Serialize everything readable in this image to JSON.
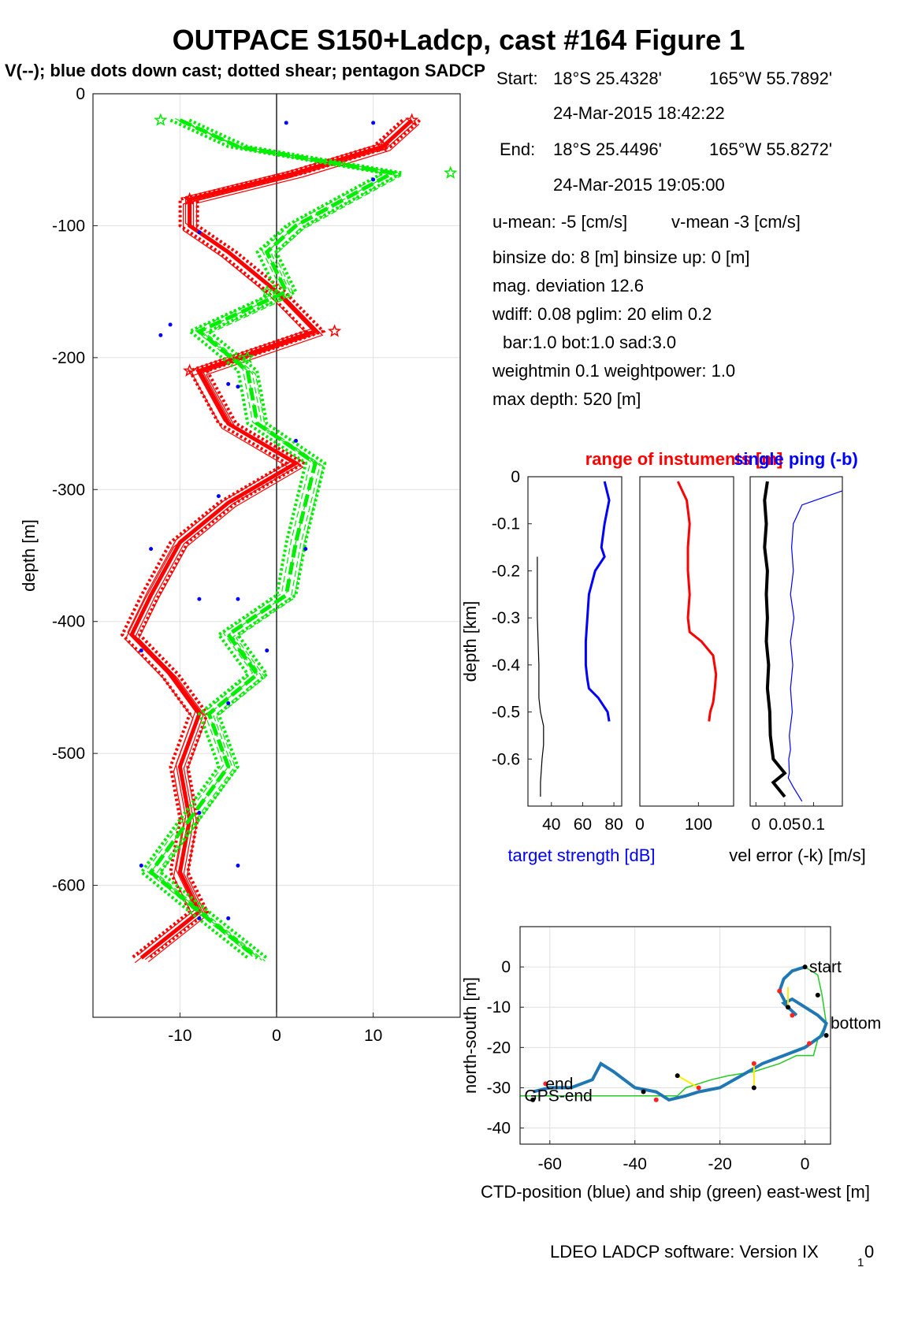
{
  "header": {
    "title": "OUTPACE S150+Ladcp, cast #164  Figure 1",
    "subtitle": "V(--); blue dots down cast; dotted shear; pentagon SADCP"
  },
  "info": {
    "start_label": "Start:",
    "start_lat": "18°S 25.4328'",
    "start_lon": "165°W 55.7892'",
    "start_time": "24-Mar-2015 18:42:22",
    "end_label": "End:",
    "end_lat": "18°S 25.4496'",
    "end_lon": "165°W 55.8272'",
    "end_time": "24-Mar-2015 19:05:00",
    "u_mean": "u-mean:  -5 [cm/s]",
    "v_mean": "v-mean  -3 [cm/s]",
    "binsize": "binsize do: 8 [m]  binsize up:  0 [m]",
    "mag_dev": "mag. deviation 12.6",
    "wdiff": "wdiff: 0.08  pglim: 20  elim 0.2",
    "bar": "bar:1.0 bot:1.0 sad:3.0",
    "weight": "weightmin 0.1  weightpower: 1.0",
    "max_depth": "max depth: 520 [m]"
  },
  "footer": {
    "software": "LDEO LADCP software: Version IX",
    "sub": "1",
    "tail": "0"
  },
  "chart_data": [
    {
      "name": "velocity-profile",
      "type": "line",
      "ylabel": "depth [m]",
      "xlim": [
        -19,
        19
      ],
      "ylim": [
        -700,
        0
      ],
      "xticks": [
        -10,
        0,
        10
      ],
      "yticks": [
        0,
        -100,
        -200,
        -300,
        -400,
        -500,
        -600
      ],
      "grid": true,
      "colors": {
        "u": "#ff0000",
        "v": "#00ee00",
        "dots": "#0000ff"
      },
      "depths": [
        -20,
        -40,
        -60,
        -80,
        -100,
        -120,
        -150,
        -180,
        -210,
        -250,
        -280,
        -310,
        -340,
        -380,
        -410,
        -440,
        -470,
        -510,
        -550,
        -590,
        -620,
        -655
      ],
      "u_mean": [
        14,
        11,
        2,
        -9,
        -9,
        -5,
        0,
        4,
        -8,
        -5,
        2,
        -5,
        -10,
        -13,
        -15,
        -11,
        -8,
        -10,
        -9,
        -10,
        -8,
        -14
      ],
      "v_mean": [
        -10,
        -4,
        12,
        7,
        2,
        -1,
        1,
        -8,
        -3,
        -2,
        4,
        3,
        2,
        1,
        -5,
        -2,
        -7,
        -5,
        -9,
        -13,
        -8,
        -2
      ],
      "down_dots_u": [
        [
          1,
          -22
        ],
        [
          -8,
          -105
        ],
        [
          -11,
          -175
        ],
        [
          -5,
          -220
        ],
        [
          -6,
          -305
        ],
        [
          -13,
          -345
        ],
        [
          -8,
          -383
        ],
        [
          -14,
          -422
        ],
        [
          -5,
          -462
        ],
        [
          -8,
          -545
        ],
        [
          -5,
          -625
        ]
      ],
      "down_dots_v": [
        [
          10,
          -22
        ],
        [
          10,
          -65
        ],
        [
          -12,
          -183
        ],
        [
          -4,
          -222
        ],
        [
          2,
          -263
        ],
        [
          3,
          -345
        ],
        [
          -4,
          -383
        ],
        [
          -1,
          -422
        ],
        [
          -4,
          -585
        ],
        [
          -14,
          -585
        ],
        [
          -8,
          -625
        ]
      ]
    },
    {
      "name": "target-strength",
      "type": "line",
      "title": "range of instuments [m]",
      "title_overlay": "single ping (-b)",
      "ylabel": "depth [km]",
      "xlabel": "target strength [dB]",
      "xlim": [
        25,
        85
      ],
      "ylim": [
        -0.7,
        0
      ],
      "xticks": [
        40,
        60,
        80
      ],
      "yticks": [
        0,
        -0.1,
        -0.2,
        -0.3,
        -0.4,
        -0.5,
        -0.6
      ],
      "series": [
        {
          "color": "#0000ff",
          "x": [
            74,
            77,
            74,
            72,
            74,
            68,
            64,
            63,
            62,
            62,
            63,
            64,
            70,
            76,
            77
          ],
          "y": [
            -0.01,
            -0.05,
            -0.1,
            -0.15,
            -0.17,
            -0.2,
            -0.25,
            -0.3,
            -0.35,
            -0.4,
            -0.43,
            -0.45,
            -0.47,
            -0.5,
            -0.52
          ]
        },
        {
          "color": "#000000",
          "x": [
            31,
            31,
            32,
            32,
            33,
            35,
            35,
            34,
            33,
            33
          ],
          "y": [
            -0.17,
            -0.3,
            -0.4,
            -0.47,
            -0.5,
            -0.53,
            -0.57,
            -0.6,
            -0.65,
            -0.68
          ]
        }
      ]
    },
    {
      "name": "range",
      "type": "line",
      "xlim": [
        0,
        160
      ],
      "ylim": [
        -0.7,
        0
      ],
      "xticks": [
        0,
        100
      ],
      "series": [
        {
          "color": "#ff0000",
          "x": [
            65,
            80,
            85,
            82,
            82,
            85,
            82,
            85,
            105,
            125,
            130,
            128,
            125,
            120,
            118
          ],
          "y": [
            -0.01,
            -0.05,
            -0.1,
            -0.15,
            -0.2,
            -0.25,
            -0.3,
            -0.33,
            -0.35,
            -0.38,
            -0.42,
            -0.45,
            -0.48,
            -0.5,
            -0.52
          ]
        }
      ]
    },
    {
      "name": "vel-error",
      "type": "line",
      "xlabel": "vel error (-k) [m/s]",
      "xlim": [
        -0.01,
        0.15
      ],
      "ylim": [
        -0.7,
        0
      ],
      "xticks": [
        0,
        0.05,
        0.1
      ],
      "xticklabels": [
        "0",
        "0.05",
        "0.1"
      ],
      "series": [
        {
          "color": "#0000ff",
          "x": [
            0.15,
            0.08,
            0.065,
            0.062,
            0.065,
            0.06,
            0.066,
            0.06,
            0.064,
            0.06,
            0.063,
            0.058,
            0.06,
            0.057,
            0.058,
            0.056,
            0.065,
            0.08
          ],
          "y": [
            -0.03,
            -0.06,
            -0.1,
            -0.15,
            -0.2,
            -0.25,
            -0.3,
            -0.35,
            -0.4,
            -0.45,
            -0.5,
            -0.55,
            -0.58,
            -0.6,
            -0.63,
            -0.64,
            -0.66,
            -0.69
          ]
        },
        {
          "color": "#000000",
          "x": [
            0.02,
            0.015,
            0.018,
            0.015,
            0.02,
            0.018,
            0.02,
            0.018,
            0.022,
            0.02,
            0.024,
            0.025,
            0.03,
            0.05,
            0.03,
            0.05
          ],
          "y": [
            -0.01,
            -0.05,
            -0.1,
            -0.15,
            -0.2,
            -0.25,
            -0.3,
            -0.35,
            -0.4,
            -0.45,
            -0.5,
            -0.55,
            -0.6,
            -0.63,
            -0.65,
            -0.68
          ]
        }
      ]
    },
    {
      "name": "ship-track",
      "type": "line",
      "xlabel": "CTD-position (blue) and ship (green) east-west [m]",
      "ylabel": "north-south [m]",
      "xlim": [
        -67,
        6
      ],
      "ylim": [
        -44,
        10
      ],
      "xticks": [
        -60,
        -40,
        -20,
        0
      ],
      "yticks": [
        0,
        -10,
        -20,
        -30,
        -40
      ],
      "grid": true,
      "labels": [
        {
          "text": "start",
          "x": 1,
          "y": 0
        },
        {
          "text": "bottom",
          "x": 6,
          "y": -14
        },
        {
          "text": "end",
          "x": -61,
          "y": -29
        },
        {
          "text": "GPS-end",
          "x": -66,
          "y": -32
        }
      ],
      "series": [
        {
          "name": "CTD",
          "color": "#1f77b4",
          "x": [
            0,
            -3,
            -5,
            -6,
            -4,
            -2,
            -5,
            -3,
            0,
            3,
            5,
            4,
            0,
            -5,
            -10,
            -15,
            -20,
            -25,
            -28,
            -32,
            -35,
            -40,
            -45,
            -48,
            -50,
            -55,
            -60,
            -64
          ],
          "y": [
            0,
            -1,
            -3,
            -6,
            -10,
            -12,
            -9,
            -8,
            -10,
            -12,
            -14,
            -17,
            -20,
            -22,
            -24,
            -27,
            -30,
            -31,
            -32,
            -33,
            -31,
            -30,
            -26,
            -24,
            -28,
            -30,
            -30,
            -31
          ]
        },
        {
          "name": "ship",
          "color": "#22cc22",
          "x": [
            0,
            3,
            4,
            5,
            3,
            2,
            -2,
            -6,
            -12,
            -18,
            -22,
            -25,
            -28,
            -30,
            -38,
            -45,
            -55,
            -64,
            -67
          ],
          "y": [
            0,
            -2,
            -7,
            -14,
            -18,
            -22,
            -22,
            -24,
            -26,
            -27,
            -28,
            -29,
            -30,
            -32,
            -32,
            -32,
            -32,
            -32,
            -32
          ]
        }
      ]
    }
  ]
}
